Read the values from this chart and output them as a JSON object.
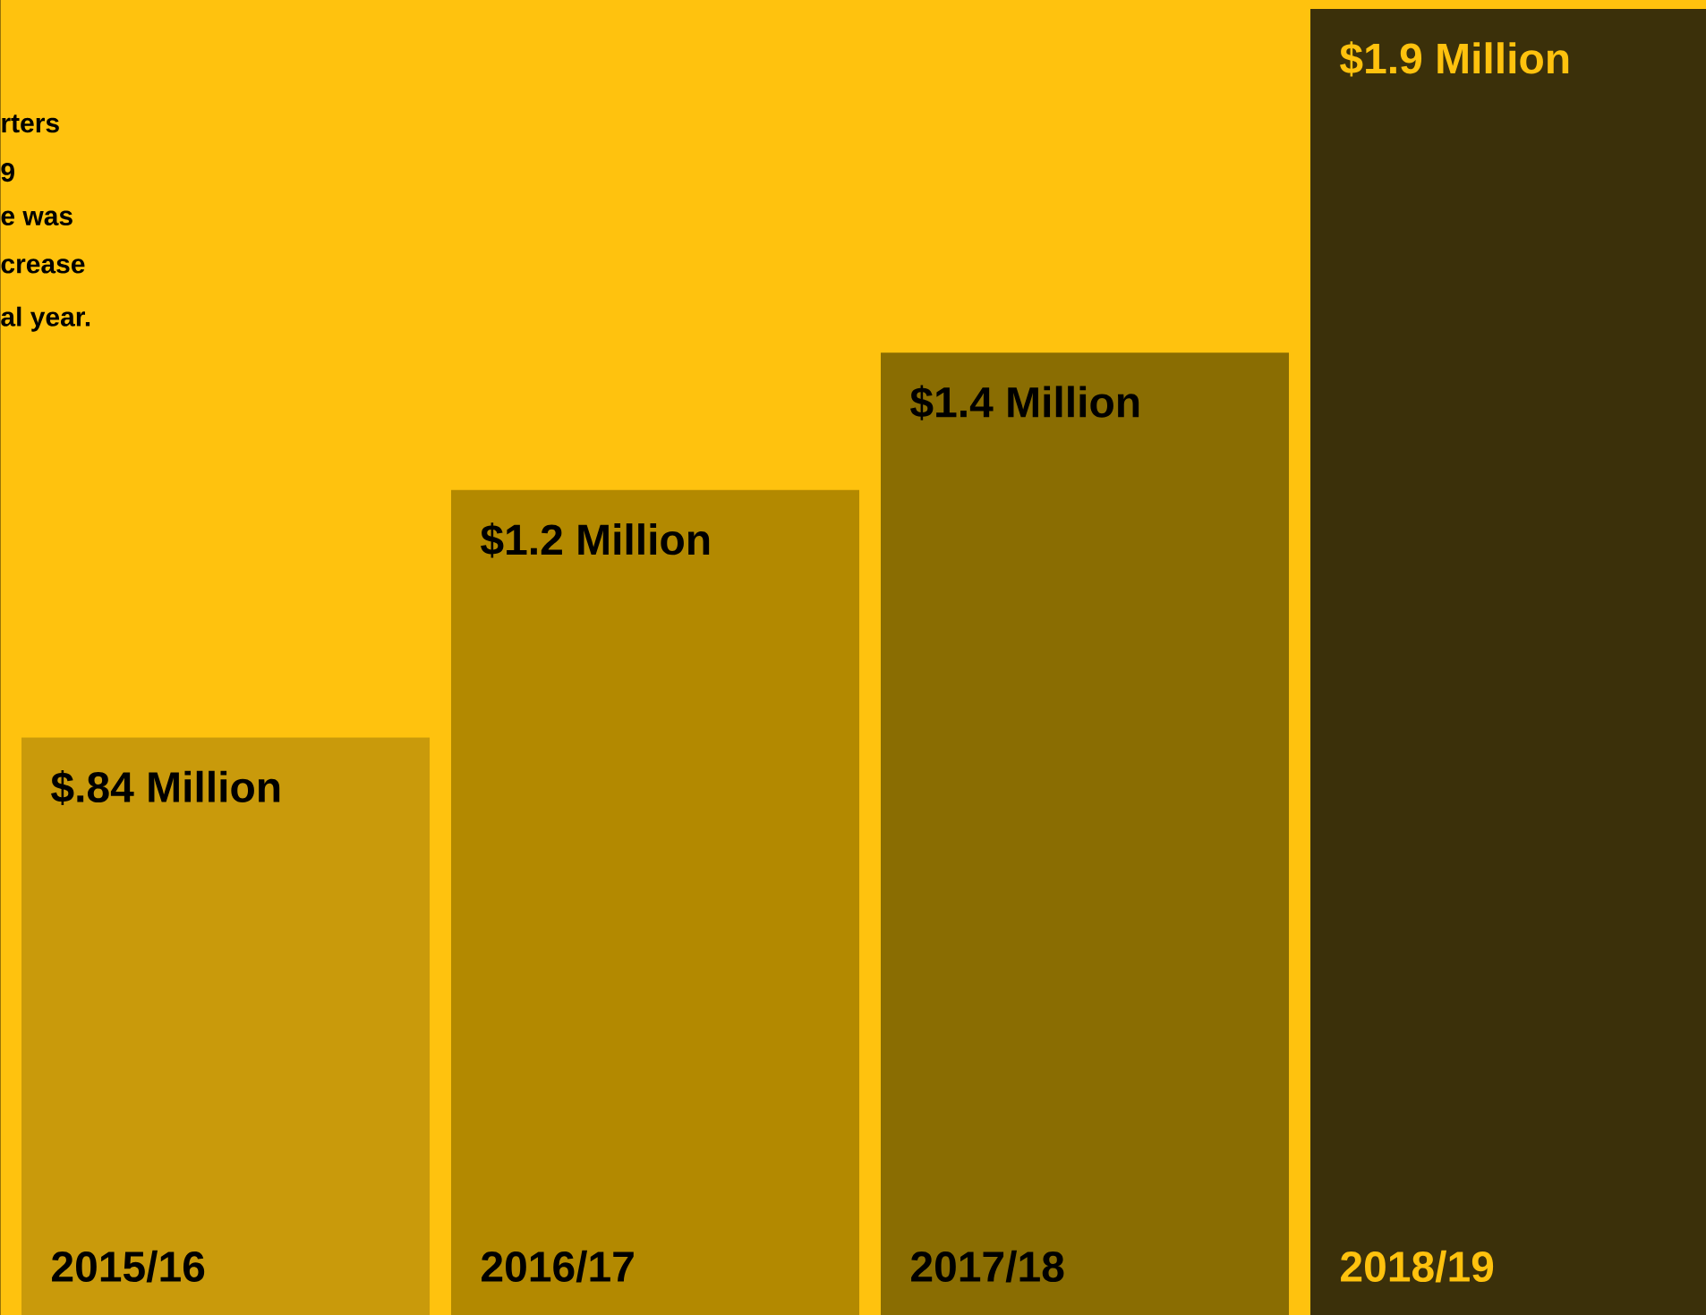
{
  "chart_data": {
    "type": "bar",
    "categories": [
      "2015/16",
      "2016/17",
      "2017/18",
      "2018/19"
    ],
    "values": [
      0.84,
      1.2,
      1.4,
      1.9
    ],
    "colors": [
      "#c99a0b",
      "#b38900",
      "#8a6d02",
      "#3b300a"
    ],
    "value_labels": [
      "$.84 Million",
      "$1.2 Million",
      "$1.4 Million",
      "$1.9 Million"
    ],
    "annotations": [
      "rters",
      "9",
      "e was",
      "crease",
      "al year."
    ]
  }
}
